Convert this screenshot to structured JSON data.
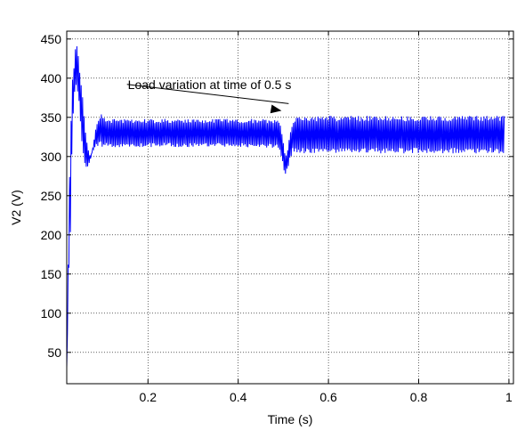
{
  "chart_data": {
    "type": "line",
    "title": "",
    "xlabel": "Time (s)",
    "ylabel": "V2 (V)",
    "xlim": [
      0.02,
      1.01
    ],
    "ylim": [
      10,
      460
    ],
    "xticks": [
      0.2,
      0.4,
      0.6,
      0.8,
      1
    ],
    "xtick_labels": [
      "0.2",
      "0.4",
      "0.6",
      "0.8",
      "1"
    ],
    "yticks": [
      50,
      100,
      150,
      200,
      250,
      300,
      350,
      400,
      450
    ],
    "ytick_labels": [
      "50",
      "100",
      "150",
      "200",
      "250",
      "300",
      "350",
      "400",
      "450"
    ],
    "grid": true,
    "grid_style": "dotted",
    "line_color": "#0000ff",
    "series": [
      {
        "x": [
          0.02,
          0.024,
          0.028,
          0.032,
          0.036,
          0.04,
          0.044,
          0.048,
          0.052,
          0.056,
          0.06,
          0.064,
          0.068,
          0.072,
          0.076,
          0.08,
          0.084,
          0.088,
          0.092,
          0.096,
          0.1,
          0.104,
          0.108,
          0.112,
          0.116,
          0.12,
          0.13,
          0.15,
          0.2,
          0.3,
          0.4,
          0.49,
          0.495,
          0.5,
          0.505,
          0.51,
          0.515,
          0.52,
          0.525,
          0.53,
          0.54,
          0.6,
          0.7,
          0.8,
          0.9,
          0.99
        ],
        "envelope_upper": [
          30,
          200,
          330,
          400,
          420,
          445,
          440,
          420,
          400,
          370,
          340,
          320,
          310,
          300,
          305,
          320,
          335,
          345,
          350,
          357,
          355,
          350,
          350,
          348,
          348,
          348,
          348,
          348,
          348,
          348,
          348,
          348,
          340,
          320,
          300,
          310,
          330,
          345,
          350,
          357,
          352,
          352,
          352,
          352,
          352,
          352
        ],
        "envelope_lower": [
          30,
          140,
          200,
          320,
          370,
          390,
          380,
          360,
          330,
          300,
          290,
          285,
          288,
          295,
          305,
          310,
          312,
          313,
          314,
          313,
          312,
          312,
          312,
          312,
          312,
          312,
          312,
          312,
          312,
          312,
          312,
          310,
          300,
          285,
          276,
          285,
          295,
          305,
          306,
          305,
          304,
          304,
          304,
          304,
          304,
          304
        ]
      }
    ],
    "annotations": [
      {
        "text": "Load variation at time of 0.5 s",
        "x": 0.54,
        "y": 383,
        "arrow_to": [
          0.5,
          355
        ]
      }
    ]
  }
}
